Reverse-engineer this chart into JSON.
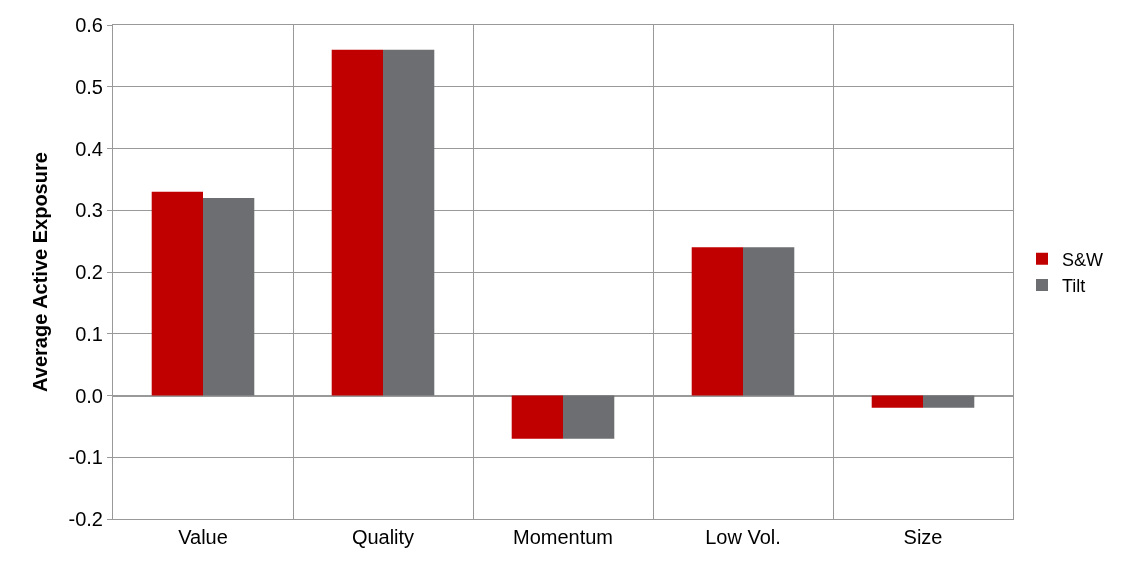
{
  "chart_data": {
    "type": "bar",
    "ylabel": "Average Active Exposure",
    "categories": [
      "Value",
      "Quality",
      "Momentum",
      "Low Vol.",
      "Size"
    ],
    "series": [
      {
        "name": "S&W",
        "color": "#c00000",
        "values": [
          0.33,
          0.56,
          -0.07,
          0.24,
          -0.02
        ]
      },
      {
        "name": "Tilt",
        "color": "#6d6e71",
        "values": [
          0.32,
          0.56,
          -0.07,
          0.24,
          -0.02
        ]
      }
    ],
    "ylim": [
      -0.2,
      0.6
    ],
    "yticks": [
      -0.2,
      -0.1,
      {
        "value": 0,
        "label": "0.0"
      },
      0.1,
      0.2,
      0.3,
      0.4,
      0.5,
      0.6
    ],
    "grid": true,
    "legend": "right"
  }
}
